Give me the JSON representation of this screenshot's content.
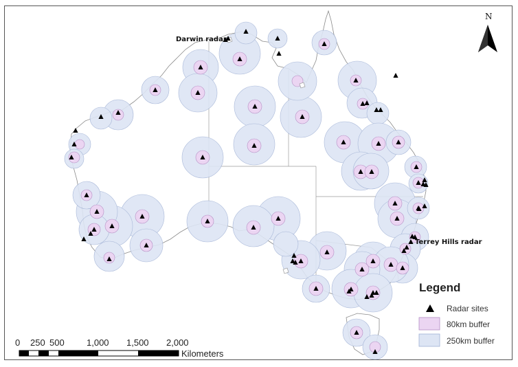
{
  "map": {
    "labels": {
      "darwin": "Darwin radar",
      "terrey_hills": "Terrey Hills radar"
    },
    "north_arrow": {
      "letter": "N"
    },
    "legend": {
      "title": "Legend",
      "items": [
        {
          "label": "Radar sites"
        },
        {
          "label": "80km buffer",
          "color": "#ebd5f2"
        },
        {
          "label": "250km buffer",
          "color": "#dde5f4"
        }
      ]
    },
    "scale_bar": {
      "ticks": [
        "0",
        "250",
        "500",
        "1,000",
        "1,500",
        "2,000"
      ],
      "unit": "Kilometers"
    },
    "colors": {
      "land": "#ffffff",
      "coast": "#8a8a8a",
      "buffer_250": "#dde5f4",
      "buffer_80": "#ebd5f2",
      "site": "#000000"
    }
  }
}
